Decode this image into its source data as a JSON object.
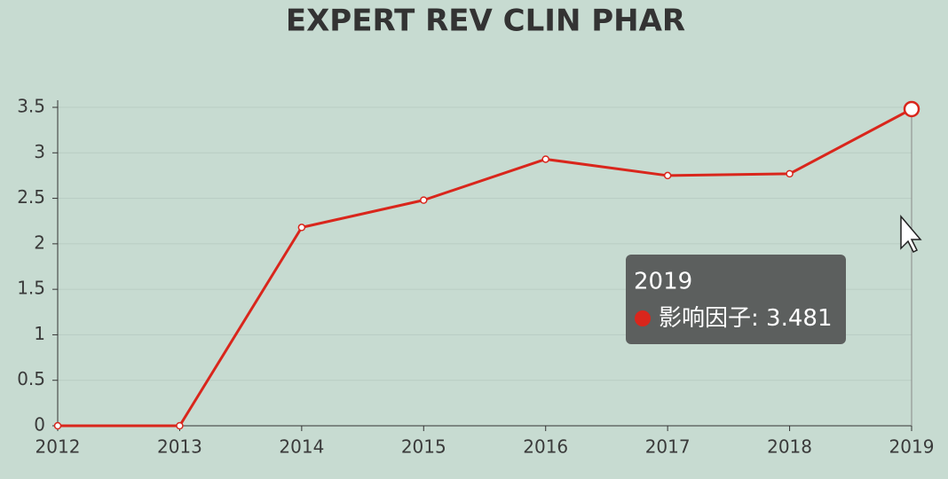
{
  "chart_data": {
    "type": "line",
    "title": "EXPERT REV CLIN PHAR",
    "categories": [
      "2012",
      "2013",
      "2014",
      "2015",
      "2016",
      "2017",
      "2018",
      "2019"
    ],
    "series": [
      {
        "name": "影响因子",
        "color": "#d9261c",
        "values": [
          0,
          0,
          2.18,
          2.48,
          2.93,
          2.75,
          2.77,
          3.481
        ]
      }
    ],
    "ylim": [
      0,
      3.5
    ],
    "yticks": [
      0,
      0.5,
      1,
      1.5,
      2,
      2.5,
      3,
      3.5
    ],
    "grid": true,
    "tooltip": {
      "separator": ": "
    }
  }
}
